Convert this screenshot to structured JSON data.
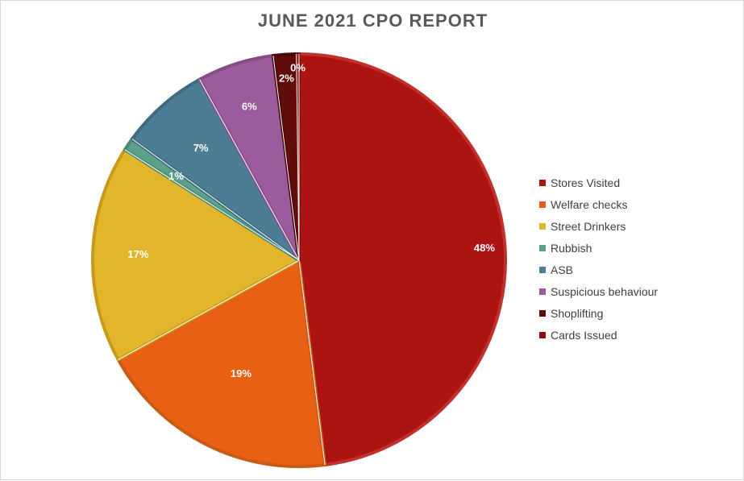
{
  "chart_data": {
    "type": "pie",
    "title": "JUNE 2021 CPO REPORT",
    "start_angle_deg": 0,
    "direction": "clockwise",
    "legend_position": "right",
    "slices": [
      {
        "name": "Stores Visited",
        "value": 48.0,
        "label": "48%",
        "color": "#ac1412",
        "border": "#c0302c"
      },
      {
        "name": "Welfare checks",
        "value": 19.0,
        "label": "19%",
        "color": "#e76014",
        "border": "#c85a17"
      },
      {
        "name": "Street Drinkers",
        "value": 17.0,
        "label": "17%",
        "color": "#e2b52a",
        "border": "#c99a1a"
      },
      {
        "name": "Rubbish",
        "value": 1.0,
        "label": "1%",
        "color": "#5ba188",
        "border": "#4a8a73"
      },
      {
        "name": "ASB",
        "value": 7.0,
        "label": "7%",
        "color": "#4d7c95",
        "border": "#3f6a80"
      },
      {
        "name": "Suspicious behaviour",
        "value": 6.0,
        "label": "6%",
        "color": "#9c5b9c",
        "border": "#854c85"
      },
      {
        "name": "Shoplifting",
        "value": 1.8,
        "label": "2%",
        "color": "#610b0b",
        "border": "#4a0808"
      },
      {
        "name": "Cards Issued",
        "value": 0.2,
        "label": "0%",
        "color": "#8f1010",
        "border": "#7a0c0c"
      }
    ]
  }
}
